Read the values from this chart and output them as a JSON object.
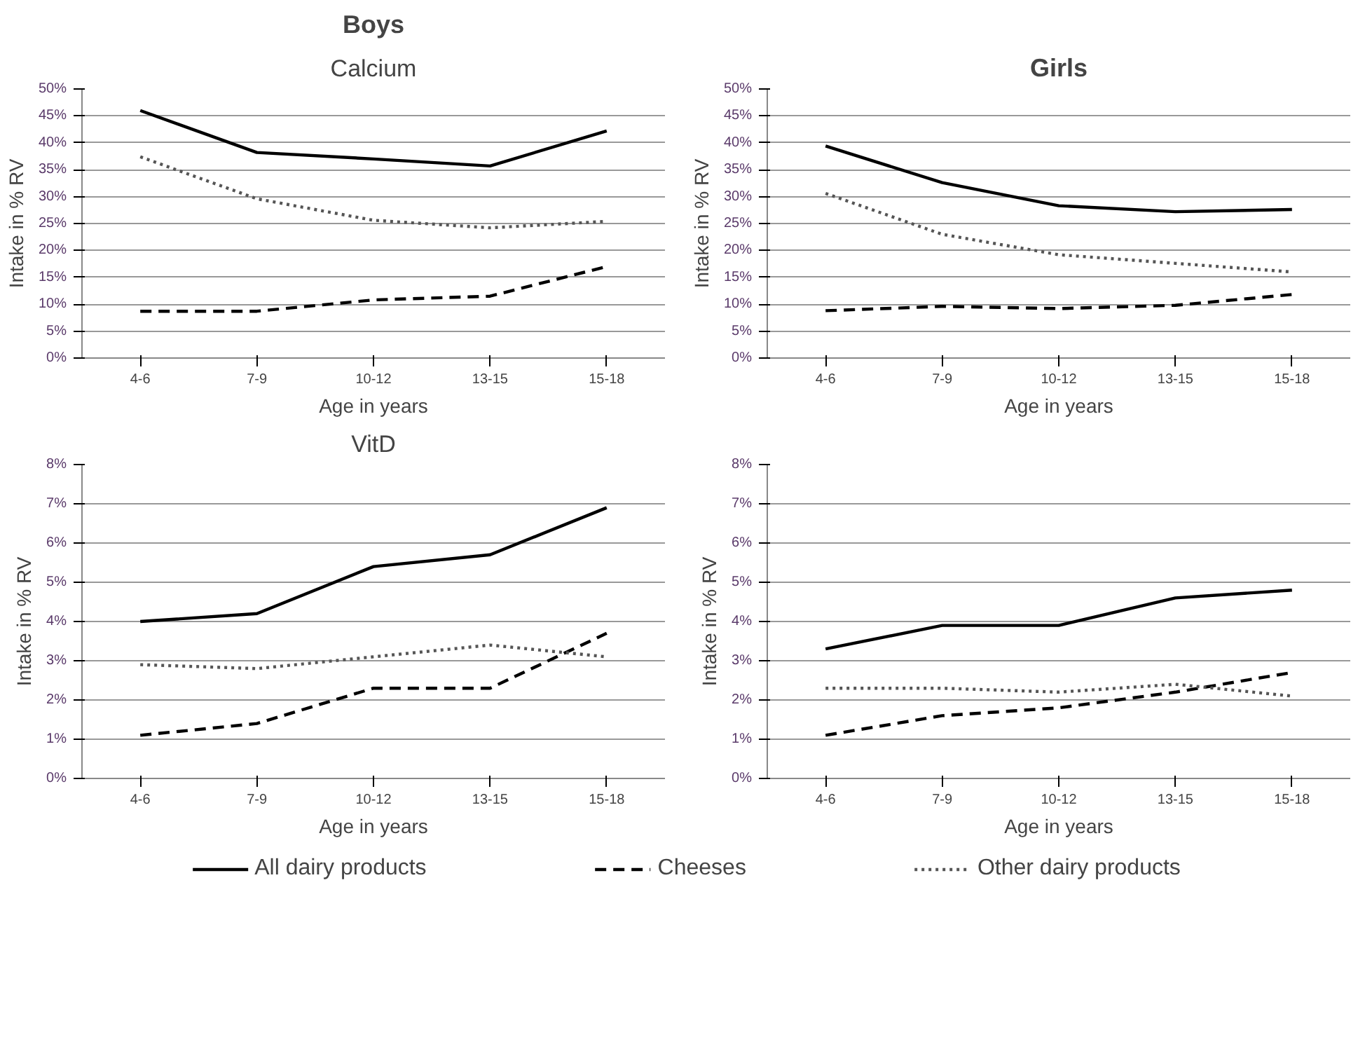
{
  "chart_data": [
    {
      "type": "line",
      "title": "Boys",
      "subtitle": "Calcium",
      "xlabel": "Age in years",
      "ylabel": "Intake in % RV",
      "categories": [
        "4-6",
        "7-9",
        "10-12",
        "13-15",
        "15-18"
      ],
      "ylim": [
        0,
        50
      ],
      "yticks": [
        {
          "value": 0,
          "label": "0%"
        },
        {
          "value": 5,
          "label": "5%"
        },
        {
          "value": 10,
          "label": "10%"
        },
        {
          "value": 15,
          "label": "15%"
        },
        {
          "value": 20,
          "label": "20%"
        },
        {
          "value": 25,
          "label": "25%"
        },
        {
          "value": 30,
          "label": "30%"
        },
        {
          "value": 35,
          "label": "35%"
        },
        {
          "value": 40,
          "label": "40%"
        },
        {
          "value": 45,
          "label": "45%"
        },
        {
          "value": 50,
          "label": "50%"
        }
      ],
      "grid": "y",
      "legend": "bottom",
      "series": [
        {
          "name": "All dairy products",
          "color": "#000000",
          "line_style": "solid",
          "values": [
            46,
            38.2,
            37,
            35.7,
            42.2
          ]
        },
        {
          "name": "Cheeses",
          "color": "#000000",
          "line_style": "dashed",
          "values": [
            8.7,
            8.7,
            10.8,
            11.5,
            17
          ]
        },
        {
          "name": "Other dairy products",
          "color": "#555555",
          "line_style": "dotted",
          "values": [
            37.4,
            29.6,
            25.6,
            24.2,
            25.4
          ]
        }
      ]
    },
    {
      "type": "line",
      "title": "Girls",
      "xlabel": "Age in years",
      "ylabel": "Intake in % RV",
      "categories": [
        "4-6",
        "7-9",
        "10-12",
        "13-15",
        "15-18"
      ],
      "ylim": [
        0,
        50
      ],
      "yticks": [
        {
          "value": 0,
          "label": "0%"
        },
        {
          "value": 5,
          "label": "5%"
        },
        {
          "value": 10,
          "label": "10%"
        },
        {
          "value": 15,
          "label": "15%"
        },
        {
          "value": 20,
          "label": "20%"
        },
        {
          "value": 25,
          "label": "25%"
        },
        {
          "value": 30,
          "label": "30%"
        },
        {
          "value": 35,
          "label": "35%"
        },
        {
          "value": 40,
          "label": "40%"
        },
        {
          "value": 45,
          "label": "45%"
        },
        {
          "value": 50,
          "label": "50%"
        }
      ],
      "grid": "y",
      "series": [
        {
          "color": "#000000",
          "line_style": "solid",
          "values": [
            39.4,
            32.6,
            28.3,
            27.2,
            27.6
          ]
        },
        {
          "color": "#000000",
          "line_style": "dashed",
          "values": [
            8.8,
            9.6,
            9.2,
            9.8,
            11.8
          ]
        },
        {
          "color": "#555555",
          "line_style": "dotted",
          "values": [
            30.6,
            23,
            19.2,
            17.6,
            16
          ]
        }
      ]
    },
    {
      "type": "line",
      "subtitle": "VitD",
      "xlabel": "Age in years",
      "ylabel": "Intake in % RV",
      "categories": [
        "4-6",
        "7-9",
        "10-12",
        "13-15",
        "15-18"
      ],
      "ylim": [
        0,
        8
      ],
      "yticks": [
        {
          "value": 0,
          "label": "0%"
        },
        {
          "value": 1,
          "label": "1%"
        },
        {
          "value": 2,
          "label": "2%"
        },
        {
          "value": 3,
          "label": "3%"
        },
        {
          "value": 4,
          "label": "4%"
        },
        {
          "value": 5,
          "label": "5%"
        },
        {
          "value": 6,
          "label": "6%"
        },
        {
          "value": 7,
          "label": "7%"
        },
        {
          "value": 8,
          "label": "8%"
        }
      ],
      "grid": "y",
      "series": [
        {
          "color": "#000000",
          "line_style": "solid",
          "values": [
            4.0,
            4.2,
            5.4,
            5.7,
            6.9
          ]
        },
        {
          "color": "#000000",
          "line_style": "dashed",
          "values": [
            1.1,
            1.4,
            2.3,
            2.3,
            3.7
          ]
        },
        {
          "color": "#555555",
          "line_style": "dotted",
          "values": [
            2.9,
            2.8,
            3.1,
            3.4,
            3.1
          ]
        }
      ]
    },
    {
      "type": "line",
      "xlabel": "Age in years",
      "ylabel": "Intake in % RV",
      "categories": [
        "4-6",
        "7-9",
        "10-12",
        "13-15",
        "15-18"
      ],
      "ylim": [
        0,
        8
      ],
      "yticks": [
        {
          "value": 0,
          "label": "0%"
        },
        {
          "value": 1,
          "label": "1%"
        },
        {
          "value": 2,
          "label": "2%"
        },
        {
          "value": 3,
          "label": "3%"
        },
        {
          "value": 4,
          "label": "4%"
        },
        {
          "value": 5,
          "label": "5%"
        },
        {
          "value": 6,
          "label": "6%"
        },
        {
          "value": 7,
          "label": "7%"
        },
        {
          "value": 8,
          "label": "8%"
        }
      ],
      "grid": "y",
      "series": [
        {
          "color": "#000000",
          "line_style": "solid",
          "values": [
            3.3,
            3.9,
            3.9,
            4.6,
            4.8
          ]
        },
        {
          "color": "#000000",
          "line_style": "dashed",
          "values": [
            1.1,
            1.6,
            1.8,
            2.2,
            2.7
          ]
        },
        {
          "color": "#555555",
          "line_style": "dotted",
          "values": [
            2.3,
            2.3,
            2.2,
            2.4,
            2.1
          ]
        }
      ]
    }
  ]
}
